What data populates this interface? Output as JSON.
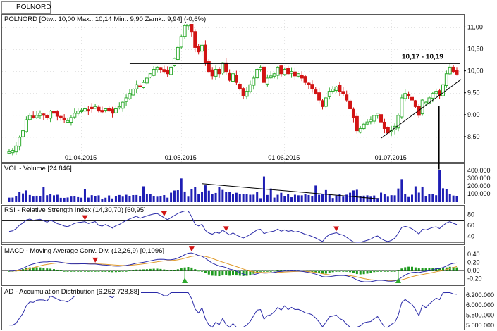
{
  "window": {
    "tab_label": "POLNORD"
  },
  "colors": {
    "up": "#2eaa2e",
    "down": "#d21414",
    "volume": "#1e1eb4",
    "rsi": "#2a2aa8",
    "macd": "#2a2aa8",
    "signal": "#e09a2a",
    "hist_up": "#1e9a1e",
    "hist_down": "#1e9a1e",
    "ad": "#2a2aa8",
    "marker_sell": "#d21414",
    "marker_buy": "#2eaa2e",
    "grid": "#c8c8c8"
  },
  "chart_data": [
    {
      "type": "candlestick",
      "title": "POLNORD [Otw.: 10,00  Max.: 10,14  Min.: 9,90  Zamk.: 9,94] (-0,6%)",
      "x_tick_labels": [
        "01.04.2015",
        "01.05.2015",
        "01.06.2015",
        "01.07.2015"
      ],
      "x_tick_index": [
        21,
        50,
        80,
        111
      ],
      "y_tick_labels": [
        "11,00",
        "10,50",
        "10,00",
        "9,50",
        "9,00",
        "8,50"
      ],
      "y_ticks": [
        11.0,
        10.5,
        10.0,
        9.5,
        9.0,
        8.5
      ],
      "ylim": [
        8.0,
        11.2
      ],
      "annotation": "10,17 - 10,19",
      "resistance_level": 10.18,
      "closes": [
        8.17,
        8.2,
        8.3,
        8.5,
        8.65,
        8.9,
        9.0,
        8.95,
        9.0,
        9.05,
        9.0,
        8.95,
        9.1,
        9.05,
        8.98,
        8.95,
        8.9,
        8.88,
        8.95,
        9.05,
        9.1,
        9.12,
        9.15,
        9.1,
        9.15,
        9.2,
        9.1,
        9.08,
        9.15,
        9.1,
        9.05,
        9.15,
        9.2,
        9.3,
        9.4,
        9.5,
        9.6,
        9.7,
        9.65,
        9.75,
        9.85,
        9.95,
        10.05,
        10.1,
        10.05,
        10.0,
        9.95,
        10.1,
        10.3,
        10.55,
        10.8,
        11.05,
        11.12,
        10.9,
        10.55,
        10.45,
        10.6,
        10.2,
        10.0,
        9.9,
        10.05,
        9.95,
        10.2,
        10.0,
        9.8,
        9.95,
        9.75,
        9.6,
        9.45,
        9.55,
        9.7,
        9.85,
        10.05,
        10.1,
        9.75,
        9.85,
        9.9,
        9.95,
        10.1,
        9.95,
        10.05,
        9.95,
        10.0,
        9.9,
        9.95,
        9.85,
        9.75,
        9.7,
        9.6,
        9.5,
        9.35,
        9.2,
        9.4,
        9.55,
        9.6,
        9.65,
        9.55,
        9.5,
        9.35,
        9.15,
        8.95,
        8.65,
        8.7,
        8.8,
        8.85,
        8.9,
        9.0,
        9.05,
        8.85,
        8.7,
        8.6,
        8.65,
        8.75,
        9.0,
        9.4,
        9.5,
        9.45,
        9.35,
        9.2,
        9.0,
        9.35,
        9.3,
        9.4,
        9.5,
        9.55,
        9.45,
        9.7,
        9.95,
        10.1,
        10.0,
        9.94
      ]
    },
    {
      "type": "bar",
      "title": "VOL - Volume [24.846]",
      "y_tick_labels": [
        "400.000",
        "300.000",
        "200.000",
        "100.000"
      ],
      "y_ticks": [
        400000,
        300000,
        200000,
        100000
      ],
      "ylim": [
        0,
        420000
      ],
      "peak_volume": 415000
    },
    {
      "type": "line",
      "title": "RSI - Relative Strength Index (14,30,70) [60,95]",
      "y_tick_labels": [
        "80",
        "60",
        "40"
      ],
      "y_ticks": [
        80,
        60,
        40
      ],
      "ylim": [
        30,
        90
      ],
      "levels": [
        30,
        70
      ]
    },
    {
      "type": "line",
      "title": "MACD - Moving Average Conv. Div. (12,26,9) [0,1096]",
      "y_tick_labels": [
        "0,40",
        "0,20",
        "0,00",
        "-0,20"
      ],
      "y_ticks": [
        0.4,
        0.2,
        0.0,
        -0.2
      ],
      "ylim": [
        -0.3,
        0.5
      ]
    },
    {
      "type": "line",
      "title": "AD - Accumulation Distribution [6.252.728,88]",
      "y_tick_labels": [
        "6.200.000",
        "6.000.000",
        "5.800.000",
        "5.600.000"
      ],
      "y_ticks": [
        6200000,
        6000000,
        5800000,
        5600000
      ],
      "ylim": [
        5560000,
        6280000
      ]
    }
  ]
}
